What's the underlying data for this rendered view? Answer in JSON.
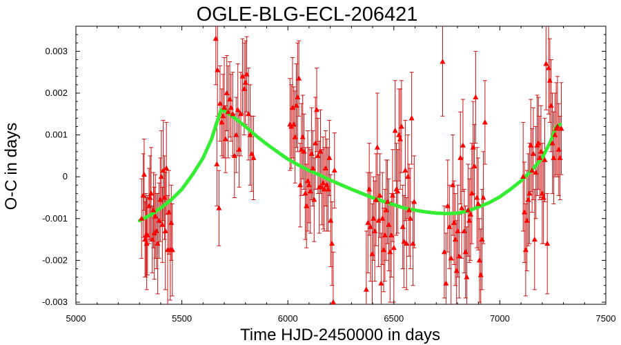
{
  "chart_data": {
    "type": "scatter",
    "title": "OGLE-BLG-ECL-206421",
    "xlabel": "Time HJD-2450000 in days",
    "ylabel": "O-C in days",
    "xlim": [
      5000,
      7500
    ],
    "ylim": [
      -0.00305,
      0.0036
    ],
    "xticks": [
      5000,
      5500,
      6000,
      6500,
      7000,
      7500
    ],
    "xtick_labels": [
      "5000",
      "5500",
      "6000",
      "6500",
      "7000",
      "7500"
    ],
    "yticks": [
      -0.003,
      -0.002,
      -0.001,
      0,
      0.001,
      0.002,
      0.003
    ],
    "ytick_labels": [
      "-0.003",
      "-0.002",
      "-0.001",
      "0",
      "0.001",
      "0.002",
      "0.003"
    ],
    "grid": false,
    "series": [
      {
        "type": "scatter-errorbar",
        "marker": "triangle",
        "color": "#ff0000",
        "points": [
          [
            5310,
            -0.001,
            0.00095
          ],
          [
            5318,
            -0.00045,
            0.001
          ],
          [
            5322,
            5e-05,
            0.00085
          ],
          [
            5326,
            -0.0015,
            0.0009
          ],
          [
            5330,
            -0.0014,
            0.001
          ],
          [
            5334,
            -0.0016,
            0.0011
          ],
          [
            5338,
            -0.0014,
            0.00095
          ],
          [
            5345,
            -0.0007,
            0.0009
          ],
          [
            5350,
            -0.0005,
            0.001
          ],
          [
            5355,
            -0.0004,
            0.0011
          ],
          [
            5360,
            -0.0015,
            0.0008
          ],
          [
            5366,
            -0.0008,
            0.0009
          ],
          [
            5370,
            -0.00135,
            0.0011
          ],
          [
            5375,
            -0.00095,
            0.001
          ],
          [
            5380,
            -0.0013,
            0.0009
          ],
          [
            5386,
            -0.0016,
            0.0012
          ],
          [
            5392,
            -0.00105,
            0.0009
          ],
          [
            5398,
            -0.00055,
            0.001
          ],
          [
            5403,
            0.0,
            0.0011
          ],
          [
            5408,
            -0.00115,
            0.0009
          ],
          [
            5412,
            0.00015,
            0.0012
          ],
          [
            5418,
            -0.0005,
            0.001
          ],
          [
            5422,
            -0.0013,
            0.0014
          ],
          [
            5427,
            0.0002,
            0.0011
          ],
          [
            5433,
            -0.00175,
            0.0013
          ],
          [
            5439,
            -0.00085,
            0.001
          ],
          [
            5445,
            -0.00175,
            0.0012
          ],
          [
            5450,
            -0.0011,
            0.0009
          ],
          [
            5455,
            -0.00175,
            0.0011
          ],
          [
            5660,
            0.0033,
            0.0011
          ],
          [
            5665,
            0.0003,
            0.001
          ],
          [
            5668,
            0.00255,
            0.0011
          ],
          [
            5675,
            -0.00075,
            0.0009
          ],
          [
            5680,
            0.00175,
            0.0009
          ],
          [
            5688,
            0.0013,
            0.0008
          ],
          [
            5694,
            0.00145,
            0.001
          ],
          [
            5700,
            0.00165,
            0.0012
          ],
          [
            5706,
            0.0009,
            0.0008
          ],
          [
            5712,
            0.002,
            0.0009
          ],
          [
            5718,
            0.00155,
            0.0011
          ],
          [
            5726,
            0.00185,
            0.0009
          ],
          [
            5732,
            0.00165,
            0.0008
          ],
          [
            5740,
            0.0015,
            0.001
          ],
          [
            5748,
            0.0005,
            0.001
          ],
          [
            5756,
            0.001,
            0.0009
          ],
          [
            5764,
            0.0016,
            0.0011
          ],
          [
            5770,
            0.00065,
            0.0009
          ],
          [
            5778,
            0.0015,
            0.001
          ],
          [
            5786,
            0.0024,
            0.0009
          ],
          [
            5794,
            0.0021,
            0.0011
          ],
          [
            5800,
            0.00225,
            0.001
          ],
          [
            5806,
            0.00245,
            0.0009
          ],
          [
            5814,
            0.0015,
            0.0011
          ],
          [
            5822,
            0.001,
            0.0012
          ],
          [
            5830,
            0.00055,
            0.0009
          ],
          [
            5838,
            0.00045,
            0.001
          ],
          [
            6010,
            0.00125,
            0.0011
          ],
          [
            6016,
            0.0012,
            0.001
          ],
          [
            6022,
            0.00165,
            0.0012
          ],
          [
            6028,
            0.00125,
            0.0009
          ],
          [
            6034,
            0.00095,
            0.0011
          ],
          [
            6040,
            0.0017,
            0.001
          ],
          [
            6046,
            0.0019,
            0.0013
          ],
          [
            6052,
            0.00235,
            0.0009
          ],
          [
            6058,
            -0.0002,
            0.001
          ],
          [
            6064,
            0.00065,
            0.0011
          ],
          [
            6070,
            0.00095,
            0.001
          ],
          [
            6076,
            0.0006,
            0.0009
          ],
          [
            6082,
            -0.0004,
            0.0011
          ],
          [
            6088,
            -0.0007,
            0.001
          ],
          [
            6094,
            -0.0001,
            0.0012
          ],
          [
            6100,
            -0.0002,
            0.0009
          ],
          [
            6106,
            -0.00035,
            0.001
          ],
          [
            6112,
            0.00055,
            0.0011
          ],
          [
            6118,
            0.0002,
            0.0009
          ],
          [
            6124,
            -0.00055,
            0.001
          ],
          [
            6130,
            0.0008,
            0.0011
          ],
          [
            6136,
            0.0016,
            0.001
          ],
          [
            6142,
            0.0005,
            0.0009
          ],
          [
            6148,
            -0.00025,
            0.0011
          ],
          [
            6154,
            0.0006,
            0.001
          ],
          [
            6160,
            -0.00025,
            0.0009
          ],
          [
            6166,
            -0.00015,
            0.0011
          ],
          [
            6172,
            -0.0003,
            0.001
          ],
          [
            6178,
            0.0002,
            0.0009
          ],
          [
            6184,
            -0.0002,
            0.0011
          ],
          [
            6190,
            -0.0003,
            0.001
          ],
          [
            6196,
            0.00045,
            0.0009
          ],
          [
            6202,
            -0.00105,
            0.0011
          ],
          [
            6208,
            -0.0016,
            0.001
          ],
          [
            6214,
            -0.003,
            0.0012
          ],
          [
            6220,
            0.00015,
            0.0009
          ],
          [
            6370,
            -0.0027,
            0.0014
          ],
          [
            6378,
            -0.0011,
            0.0012
          ],
          [
            6384,
            -0.0003,
            0.0011
          ],
          [
            6390,
            -0.0012,
            0.0013
          ],
          [
            6398,
            -0.00185,
            0.0012
          ],
          [
            6404,
            -0.001,
            0.001
          ],
          [
            6410,
            -0.0013,
            0.0012
          ],
          [
            6416,
            -0.00055,
            0.0011
          ],
          [
            6422,
            0.0007,
            0.0013
          ],
          [
            6428,
            -0.00105,
            0.0011
          ],
          [
            6434,
            -0.00045,
            0.001
          ],
          [
            6440,
            -0.00255,
            0.0012
          ],
          [
            6446,
            -0.001,
            0.0011
          ],
          [
            6452,
            -0.00175,
            0.001
          ],
          [
            6458,
            -0.0014,
            0.0011
          ],
          [
            6464,
            -0.0008,
            0.0012
          ],
          [
            6470,
            -0.0006,
            0.001
          ],
          [
            6476,
            -0.00115,
            0.0011
          ],
          [
            6482,
            -0.0018,
            0.0012
          ],
          [
            6488,
            -0.0014,
            0.001
          ],
          [
            6494,
            -0.00045,
            0.0011
          ],
          [
            6500,
            -0.0017,
            0.0013
          ],
          [
            6506,
            0.0011,
            0.0012
          ],
          [
            6512,
            -0.0003,
            0.0011
          ],
          [
            6518,
            -0.00035,
            0.001
          ],
          [
            6524,
            0.001,
            0.0011
          ],
          [
            6530,
            0.0009,
            0.0012
          ],
          [
            6536,
            0.0012,
            0.0011
          ],
          [
            6542,
            -0.0012,
            0.001
          ],
          [
            6548,
            -0.00155,
            0.0011
          ],
          [
            6554,
            0.00015,
            0.0012
          ],
          [
            6560,
            -0.0016,
            0.0011
          ],
          [
            6566,
            0.0,
            0.001
          ],
          [
            6572,
            -0.0008,
            0.0011
          ],
          [
            6578,
            -0.001,
            0.0012
          ],
          [
            6584,
            0.0014,
            0.0011
          ],
          [
            6590,
            -0.0016,
            0.001
          ],
          [
            6596,
            -0.0006,
            0.0011
          ],
          [
            6730,
            0.00275,
            0.0013
          ],
          [
            6738,
            -0.0018,
            0.0011
          ],
          [
            6746,
            -0.00255,
            0.0012
          ],
          [
            6754,
            -0.0007,
            0.0011
          ],
          [
            6762,
            -0.0012,
            0.001
          ],
          [
            6770,
            -0.00195,
            0.0011
          ],
          [
            6778,
            -0.0002,
            0.0012
          ],
          [
            6784,
            -0.0011,
            0.001
          ],
          [
            6790,
            -0.0015,
            0.0011
          ],
          [
            6796,
            -0.00225,
            0.0012
          ],
          [
            6802,
            -0.0013,
            0.0011
          ],
          [
            6808,
            -0.0019,
            0.001
          ],
          [
            6814,
            0.00045,
            0.0011
          ],
          [
            6820,
            -0.00075,
            0.0012
          ],
          [
            6826,
            0.00075,
            0.0011
          ],
          [
            6832,
            -0.0013,
            0.001
          ],
          [
            6838,
            -0.0018,
            0.0011
          ],
          [
            6844,
            -0.0024,
            0.0012
          ],
          [
            6850,
            -0.0008,
            0.0011
          ],
          [
            6856,
            -0.00105,
            0.001
          ],
          [
            6862,
            -0.0009,
            0.0011
          ],
          [
            6868,
            -0.0004,
            0.0012
          ],
          [
            6874,
            0.0007,
            0.0011
          ],
          [
            6880,
            0.00025,
            0.001
          ],
          [
            6886,
            0.0019,
            0.0011
          ],
          [
            6892,
            -0.0005,
            0.0012
          ],
          [
            6898,
            -0.00065,
            0.0011
          ],
          [
            6904,
            -0.002,
            0.001
          ],
          [
            6910,
            -0.00235,
            0.0011
          ],
          [
            6916,
            -0.0015,
            0.0012
          ],
          [
            6922,
            -0.0005,
            0.0011
          ],
          [
            6930,
            0.0013,
            0.001
          ],
          [
            7110,
            0.0,
            0.0013
          ],
          [
            7116,
            -0.00085,
            0.0012
          ],
          [
            7122,
            -0.00175,
            0.0011
          ],
          [
            7128,
            -0.00105,
            0.0012
          ],
          [
            7134,
            -0.00055,
            0.0011
          ],
          [
            7140,
            -0.0004,
            0.0012
          ],
          [
            7146,
            0.00075,
            0.0011
          ],
          [
            7152,
            0.00015,
            0.001
          ],
          [
            7158,
            0.00055,
            0.0011
          ],
          [
            7164,
            -0.0015,
            0.0012
          ],
          [
            7170,
            0.0001,
            0.0011
          ],
          [
            7176,
            0.00075,
            0.0012
          ],
          [
            7182,
            0.0008,
            0.0011
          ],
          [
            7188,
            0.00045,
            0.001
          ],
          [
            7194,
            0.0006,
            0.0011
          ],
          [
            7200,
            -0.0004,
            0.0012
          ],
          [
            7206,
            -0.0005,
            0.0011
          ],
          [
            7212,
            0.0004,
            0.001
          ],
          [
            7218,
            0.0027,
            0.0011
          ],
          [
            7224,
            -0.0016,
            0.0012
          ],
          [
            7230,
            0.0026,
            0.0011
          ],
          [
            7236,
            0.0023,
            0.001
          ],
          [
            7242,
            0.0017,
            0.0011
          ],
          [
            7248,
            0.0008,
            0.0012
          ],
          [
            7254,
            0.00045,
            0.0011
          ],
          [
            7260,
            0.001,
            0.001
          ],
          [
            7266,
            0.00115,
            0.0011
          ],
          [
            7272,
            0.0012,
            0.0012
          ],
          [
            7278,
            0.00065,
            0.0011
          ],
          [
            7284,
            0.00045,
            0.001
          ],
          [
            7290,
            0.00115,
            0.0011
          ]
        ]
      },
      {
        "type": "line",
        "color": "#33ee33",
        "points": [
          [
            5300,
            -0.00105
          ],
          [
            5350,
            -0.00092
          ],
          [
            5400,
            -0.00075
          ],
          [
            5450,
            -0.00055
          ],
          [
            5500,
            -0.0003
          ],
          [
            5550,
            5e-05
          ],
          [
            5600,
            0.00045
          ],
          [
            5640,
            0.0009
          ],
          [
            5665,
            0.0013
          ],
          [
            5685,
            0.0016
          ],
          [
            5700,
            0.00158
          ],
          [
            5750,
            0.0014
          ],
          [
            5800,
            0.0012
          ],
          [
            5850,
            0.00098
          ],
          [
            5900,
            0.00078
          ],
          [
            5950,
            0.0006
          ],
          [
            6000,
            0.00042
          ],
          [
            6050,
            0.00028
          ],
          [
            6100,
            0.00015
          ],
          [
            6150,
            4e-05
          ],
          [
            6200,
            -8e-05
          ],
          [
            6250,
            -0.00019
          ],
          [
            6300,
            -0.0003
          ],
          [
            6350,
            -0.0004
          ],
          [
            6400,
            -0.0005
          ],
          [
            6450,
            -0.00059
          ],
          [
            6500,
            -0.00067
          ],
          [
            6550,
            -0.00075
          ],
          [
            6600,
            -0.0008
          ],
          [
            6650,
            -0.00084
          ],
          [
            6700,
            -0.00087
          ],
          [
            6750,
            -0.00088
          ],
          [
            6800,
            -0.00087
          ],
          [
            6850,
            -0.00082
          ],
          [
            6900,
            -0.00072
          ],
          [
            6950,
            -0.00062
          ],
          [
            7000,
            -0.00048
          ],
          [
            7050,
            -0.0003
          ],
          [
            7100,
            -0.0001
          ],
          [
            7150,
            0.00015
          ],
          [
            7200,
            0.00045
          ],
          [
            7240,
            0.00085
          ],
          [
            7265,
            0.0012
          ],
          [
            7285,
            0.00125
          ]
        ]
      }
    ]
  }
}
